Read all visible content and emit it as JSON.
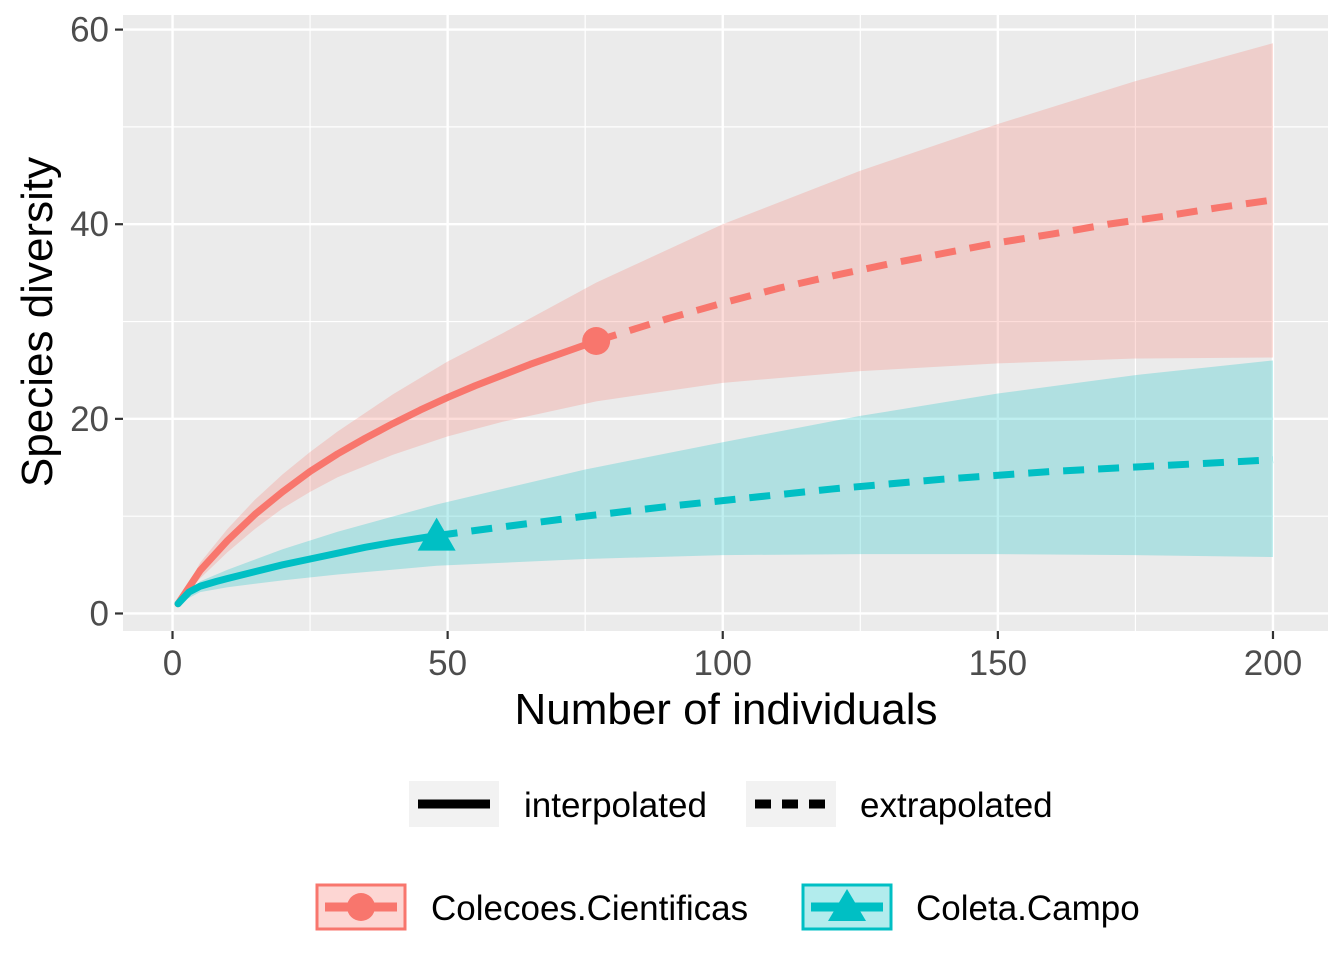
{
  "chart_data": {
    "type": "line",
    "xlabel": "Number of individuals",
    "ylabel": "Species diversity",
    "xlim": [
      -9,
      210
    ],
    "ylim": [
      -1.8,
      61.5
    ],
    "x_ticks": [
      0,
      50,
      100,
      150,
      200
    ],
    "y_ticks": [
      0,
      20,
      40,
      60
    ],
    "x_tick_labels": [
      "0",
      "50",
      "100",
      "150",
      "200"
    ],
    "y_tick_labels": [
      "0",
      "20",
      "40",
      "60"
    ],
    "grid": true,
    "legend_position": "bottom",
    "linetype_legend": {
      "interpolated_label": "interpolated",
      "extrapolated_label": "extrapolated"
    },
    "series": [
      {
        "name": "Colecoes.Cientificas",
        "color": "#F8766D",
        "marker": "circle",
        "observed": {
          "x": 77,
          "y": 28.0
        },
        "interpolated": {
          "x": [
            1,
            5,
            10,
            15,
            20,
            25,
            30,
            35,
            40,
            45,
            50,
            55,
            60,
            65,
            70,
            77
          ],
          "y": [
            1.0,
            4.4,
            7.5,
            10.2,
            12.5,
            14.6,
            16.4,
            18.0,
            19.5,
            20.9,
            22.2,
            23.4,
            24.5,
            25.6,
            26.6,
            28.0
          ]
        },
        "extrapolated": {
          "x": [
            77,
            90,
            100,
            110,
            120,
            130,
            140,
            150,
            160,
            170,
            180,
            190,
            200
          ],
          "y": [
            28.0,
            30.3,
            31.9,
            33.4,
            34.7,
            35.9,
            37.0,
            38.1,
            39.0,
            40.0,
            40.8,
            41.7,
            42.5
          ]
        },
        "ci": {
          "x": [
            1,
            5,
            10,
            15,
            20,
            25,
            30,
            40,
            50,
            60,
            77,
            100,
            125,
            150,
            175,
            200
          ],
          "lower": [
            1.0,
            3.6,
            6.3,
            8.7,
            10.8,
            12.5,
            14.0,
            16.3,
            18.2,
            19.7,
            21.8,
            23.7,
            24.9,
            25.7,
            26.2,
            26.3
          ],
          "upper": [
            1.0,
            5.2,
            8.7,
            11.7,
            14.3,
            16.6,
            18.7,
            22.5,
            25.9,
            28.8,
            34.0,
            40.0,
            45.5,
            50.3,
            54.7,
            58.6
          ]
        }
      },
      {
        "name": "Coleta.Campo",
        "color": "#00BFC4",
        "marker": "triangle",
        "observed": {
          "x": 48,
          "y": 8.0
        },
        "interpolated": {
          "x": [
            1,
            3,
            5,
            8,
            10,
            15,
            20,
            25,
            30,
            35,
            40,
            48
          ],
          "y": [
            1.0,
            2.2,
            2.8,
            3.3,
            3.6,
            4.3,
            5.0,
            5.6,
            6.2,
            6.8,
            7.3,
            8.0
          ]
        },
        "extrapolated": {
          "x": [
            48,
            60,
            75,
            90,
            100,
            120,
            140,
            160,
            180,
            200
          ],
          "y": [
            8.0,
            8.9,
            10.0,
            11.0,
            11.6,
            12.8,
            13.8,
            14.6,
            15.2,
            15.8
          ]
        },
        "ci": {
          "x": [
            1,
            5,
            10,
            20,
            30,
            48,
            75,
            100,
            125,
            150,
            175,
            200
          ],
          "lower": [
            1.0,
            2.2,
            2.7,
            3.4,
            4.0,
            4.9,
            5.6,
            6.0,
            6.1,
            6.1,
            6.0,
            5.8
          ],
          "upper": [
            1.0,
            3.3,
            4.5,
            6.6,
            8.4,
            11.2,
            14.8,
            17.6,
            20.3,
            22.6,
            24.5,
            26.0
          ]
        }
      }
    ]
  }
}
